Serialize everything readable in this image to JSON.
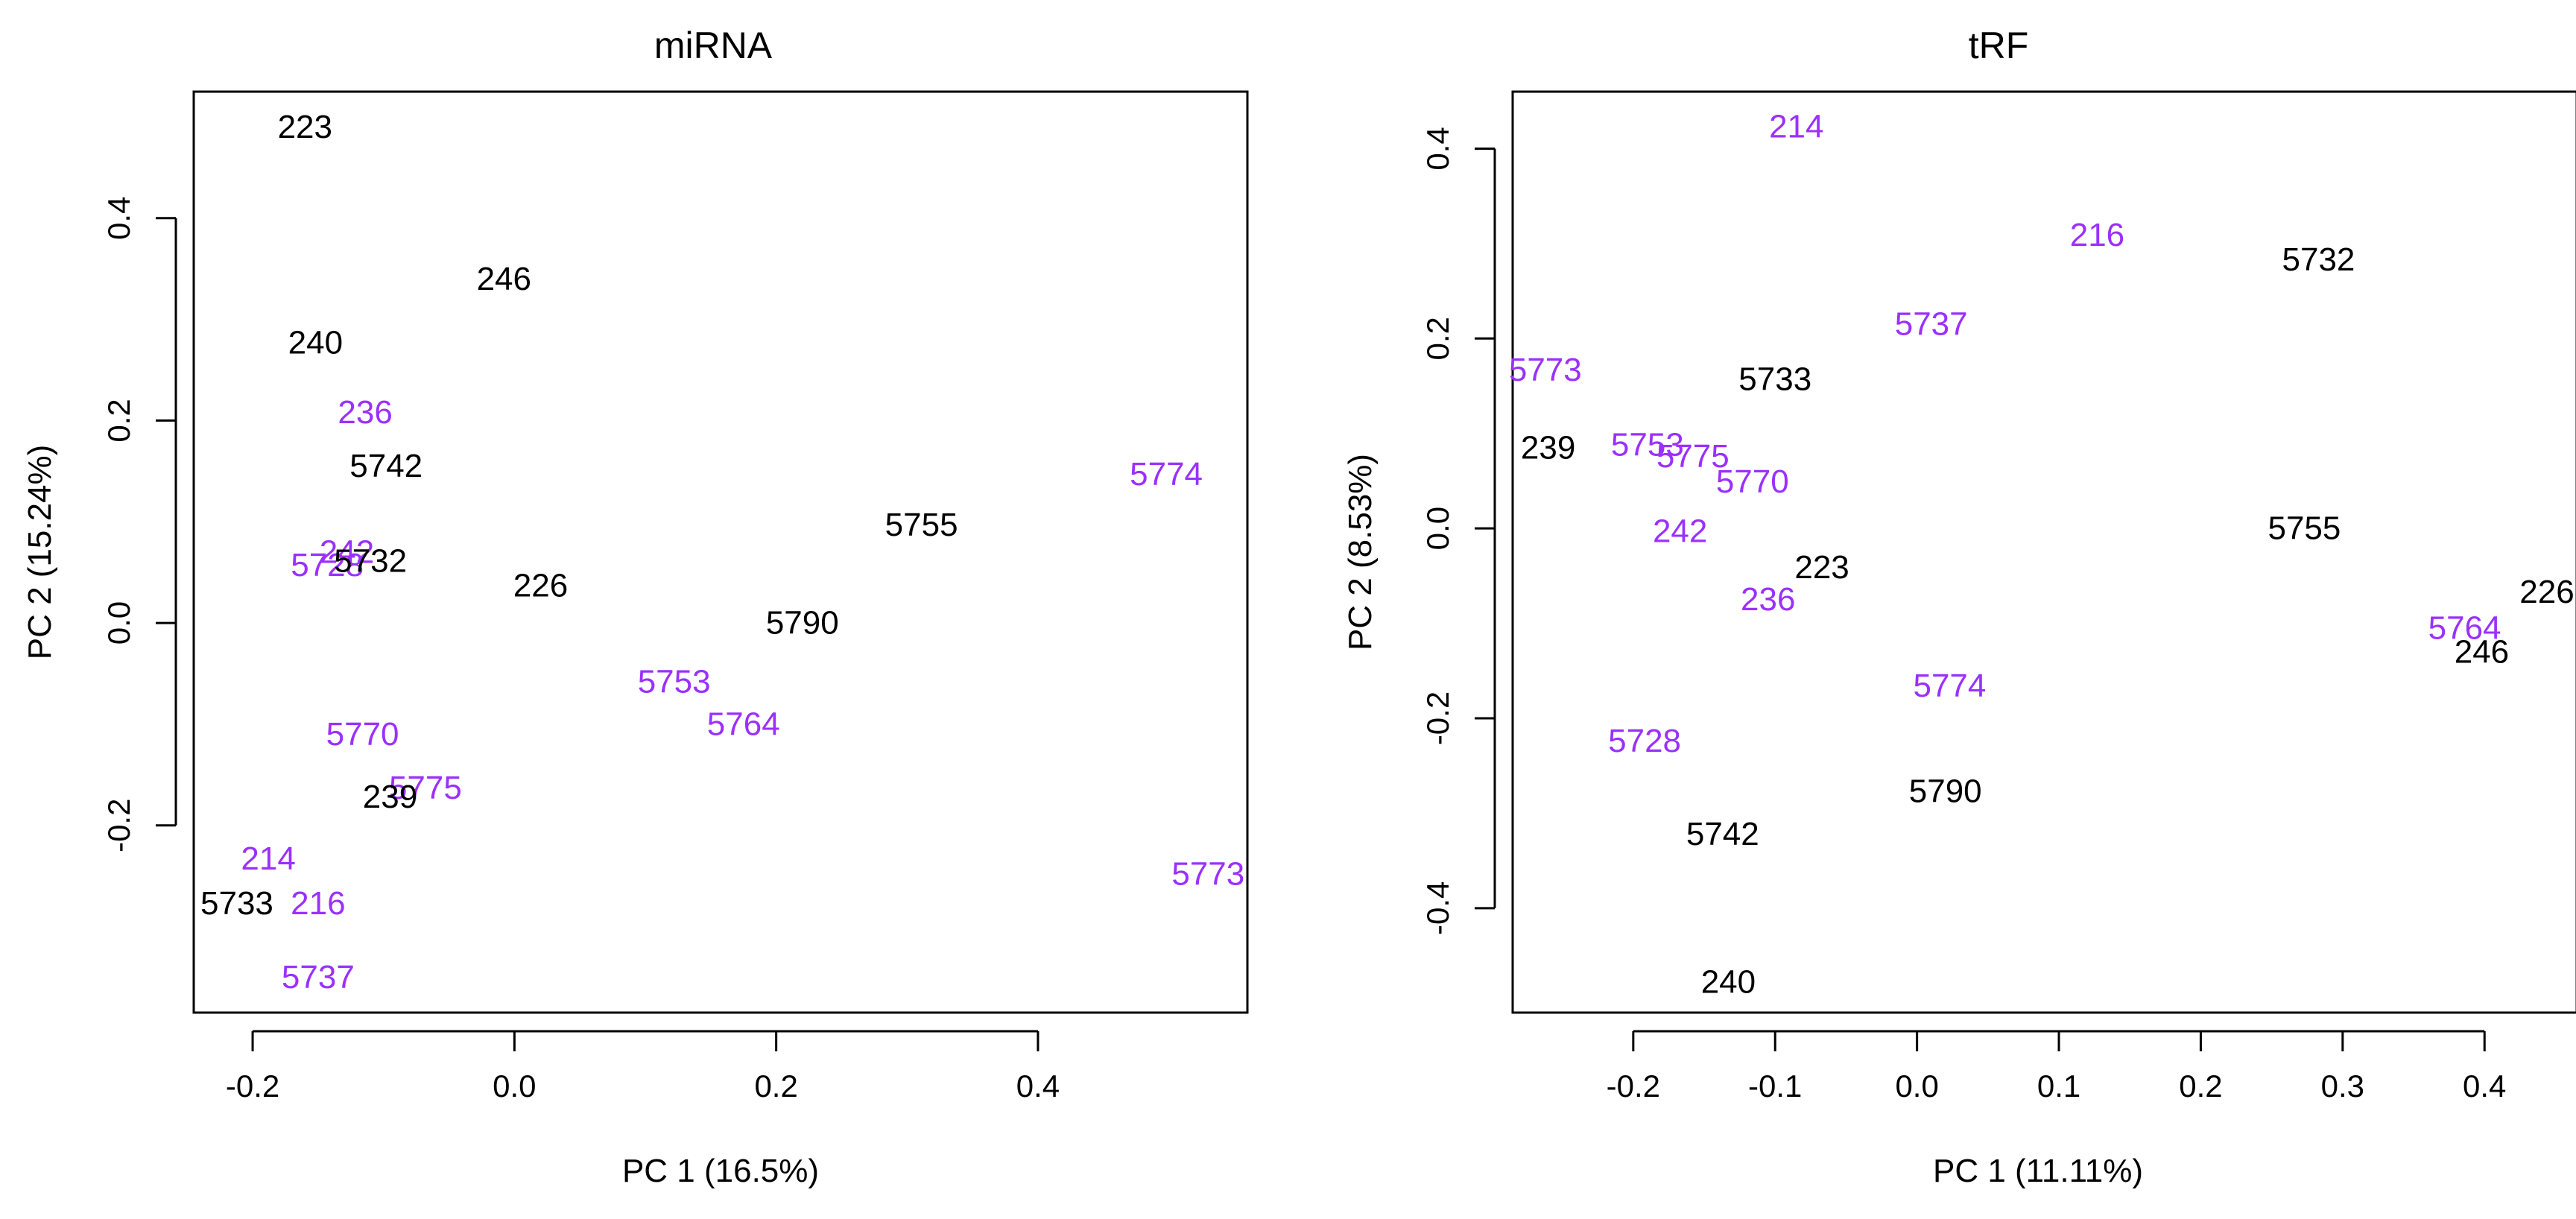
{
  "colors": {
    "groupA": "#000000",
    "groupB": "#9b30ff"
  },
  "chart_data": [
    {
      "type": "scatter",
      "title": "miRNA",
      "xlabel": "PC 1 (16.5%)",
      "ylabel": "PC 2 (15.24%)",
      "xlim": [
        -0.245,
        0.56
      ],
      "ylim": [
        -0.385,
        0.525
      ],
      "xticks": [
        -0.2,
        0.0,
        0.2,
        0.4
      ],
      "xtick_labels": [
        "-0.2",
        "0.0",
        "0.2",
        "0.4"
      ],
      "yticks": [
        -0.2,
        0.0,
        0.2,
        0.4
      ],
      "ytick_labels": [
        "-0.2",
        "0.0",
        "0.2",
        "0.4"
      ],
      "points": [
        {
          "label": "223",
          "x": -0.16,
          "y": 0.49,
          "group": "A"
        },
        {
          "label": "246",
          "x": -0.008,
          "y": 0.34,
          "group": "A"
        },
        {
          "label": "240",
          "x": -0.152,
          "y": 0.277,
          "group": "A"
        },
        {
          "label": "236",
          "x": -0.114,
          "y": 0.208,
          "group": "B"
        },
        {
          "label": "5742",
          "x": -0.098,
          "y": 0.155,
          "group": "A"
        },
        {
          "label": "5774",
          "x": 0.498,
          "y": 0.147,
          "group": "B"
        },
        {
          "label": "5755",
          "x": 0.311,
          "y": 0.097,
          "group": "A"
        },
        {
          "label": "242",
          "x": -0.128,
          "y": 0.07,
          "group": "B"
        },
        {
          "label": "5728",
          "x": -0.143,
          "y": 0.057,
          "group": "B"
        },
        {
          "label": "5732",
          "x": -0.11,
          "y": 0.061,
          "group": "A"
        },
        {
          "label": "226",
          "x": 0.02,
          "y": 0.037,
          "group": "A"
        },
        {
          "label": "5790",
          "x": 0.22,
          "y": 0.0,
          "group": "A"
        },
        {
          "label": "5753",
          "x": 0.122,
          "y": -0.058,
          "group": "B"
        },
        {
          "label": "5764",
          "x": 0.175,
          "y": -0.1,
          "group": "B"
        },
        {
          "label": "5770",
          "x": -0.116,
          "y": -0.11,
          "group": "B"
        },
        {
          "label": "5775",
          "x": -0.068,
          "y": -0.163,
          "group": "B"
        },
        {
          "label": "239",
          "x": -0.095,
          "y": -0.172,
          "group": "A"
        },
        {
          "label": "214",
          "x": -0.188,
          "y": -0.233,
          "group": "B"
        },
        {
          "label": "5773",
          "x": 0.53,
          "y": -0.248,
          "group": "B"
        },
        {
          "label": "5733",
          "x": -0.212,
          "y": -0.277,
          "group": "A"
        },
        {
          "label": "216",
          "x": -0.15,
          "y": -0.277,
          "group": "B"
        },
        {
          "label": "5737",
          "x": -0.15,
          "y": -0.35,
          "group": "B"
        }
      ]
    },
    {
      "type": "scatter",
      "title": "tRF",
      "xlabel": "PC 1 (11.11%)",
      "ylabel": "PC 2 (8.53%)",
      "xlim": [
        -0.285,
        0.465
      ],
      "ylim": [
        -0.51,
        0.46
      ],
      "xticks": [
        -0.2,
        -0.1,
        0.0,
        0.1,
        0.2,
        0.3,
        0.4
      ],
      "xtick_labels": [
        "-0.2",
        "-0.1",
        "0.0",
        "0.1",
        "0.2",
        "0.3",
        "0.4"
      ],
      "yticks": [
        -0.4,
        -0.2,
        0.0,
        0.2,
        0.4
      ],
      "ytick_labels": [
        "-0.4",
        "-0.2",
        "0.0",
        "0.2",
        "0.4"
      ],
      "points": [
        {
          "label": "214",
          "x": -0.085,
          "y": 0.423,
          "group": "B"
        },
        {
          "label": "216",
          "x": 0.127,
          "y": 0.309,
          "group": "B"
        },
        {
          "label": "5732",
          "x": 0.283,
          "y": 0.283,
          "group": "A"
        },
        {
          "label": "5737",
          "x": 0.01,
          "y": 0.215,
          "group": "B"
        },
        {
          "label": "5773",
          "x": -0.262,
          "y": 0.167,
          "group": "B"
        },
        {
          "label": "5733",
          "x": -0.1,
          "y": 0.157,
          "group": "A"
        },
        {
          "label": "239",
          "x": -0.26,
          "y": 0.085,
          "group": "A"
        },
        {
          "label": "5753",
          "x": -0.19,
          "y": 0.088,
          "group": "B"
        },
        {
          "label": "5775",
          "x": -0.158,
          "y": 0.076,
          "group": "B"
        },
        {
          "label": "5770",
          "x": -0.116,
          "y": 0.049,
          "group": "B"
        },
        {
          "label": "242",
          "x": -0.167,
          "y": -0.003,
          "group": "B"
        },
        {
          "label": "5755",
          "x": 0.273,
          "y": 0.0,
          "group": "A"
        },
        {
          "label": "223",
          "x": -0.067,
          "y": -0.041,
          "group": "A"
        },
        {
          "label": "226",
          "x": 0.444,
          "y": -0.067,
          "group": "A"
        },
        {
          "label": "236",
          "x": -0.105,
          "y": -0.075,
          "group": "B"
        },
        {
          "label": "5764",
          "x": 0.386,
          "y": -0.105,
          "group": "B"
        },
        {
          "label": "246",
          "x": 0.398,
          "y": -0.13,
          "group": "A"
        },
        {
          "label": "5774",
          "x": 0.023,
          "y": -0.166,
          "group": "B"
        },
        {
          "label": "5728",
          "x": -0.192,
          "y": -0.224,
          "group": "B"
        },
        {
          "label": "5790",
          "x": 0.02,
          "y": -0.277,
          "group": "A"
        },
        {
          "label": "5742",
          "x": -0.137,
          "y": -0.322,
          "group": "A"
        },
        {
          "label": "240",
          "x": -0.133,
          "y": -0.478,
          "group": "A"
        }
      ]
    }
  ]
}
